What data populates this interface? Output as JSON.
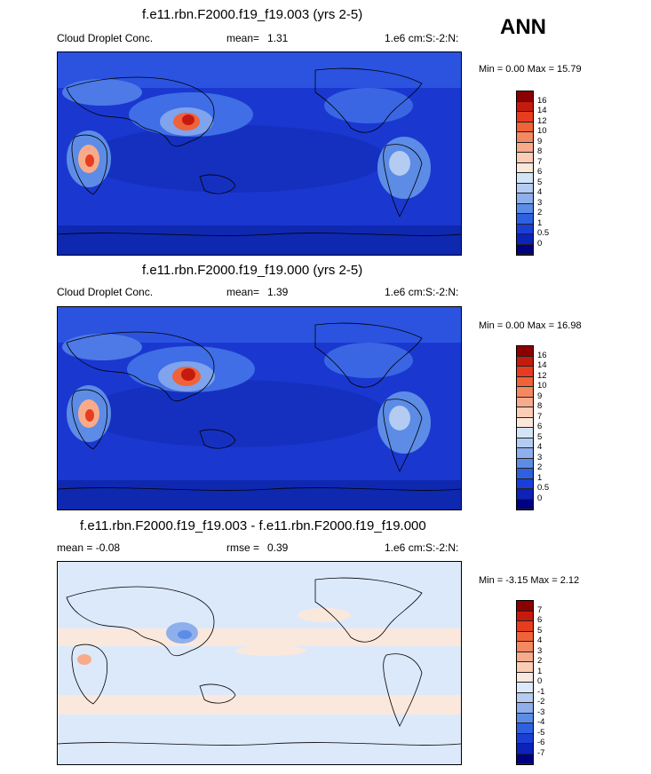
{
  "season": "ANN",
  "panels": [
    {
      "title": "f.e11.rbn.F2000.f19_f19.003 (yrs 2-5)",
      "left_label": "Cloud Droplet Conc.",
      "stat_label": "mean=",
      "stat_value": "1.31",
      "units": "1.e6 cm:S:-2:N:",
      "minmax": "Min =   0.00 Max =  15.79",
      "colorbar_labels": [
        "16",
        "14",
        "12",
        "10",
        "9",
        "8",
        "7",
        "6",
        "5",
        "4",
        "3",
        "2",
        "1",
        "0.5",
        "0"
      ],
      "colorbar_colors": [
        "#8b0000",
        "#c51b0e",
        "#e63d20",
        "#f0623a",
        "#f48860",
        "#f8ab8a",
        "#fbcdb4",
        "#fbe8dc",
        "#d4e4f8",
        "#b4ccf2",
        "#8eafec",
        "#5d8ce6",
        "#2e60e0",
        "#1a3fd6",
        "#0d22b8",
        "#000080"
      ]
    },
    {
      "title": "f.e11.rbn.F2000.f19_f19.000 (yrs 2-5)",
      "left_label": "Cloud Droplet Conc.",
      "stat_label": "mean=",
      "stat_value": "1.39",
      "units": "1.e6 cm:S:-2:N:",
      "minmax": "Min =   0.00 Max =  16.98",
      "colorbar_labels": [
        "16",
        "14",
        "12",
        "10",
        "9",
        "8",
        "7",
        "6",
        "5",
        "4",
        "3",
        "2",
        "1",
        "0.5",
        "0"
      ],
      "colorbar_colors": [
        "#8b0000",
        "#c51b0e",
        "#e63d20",
        "#f0623a",
        "#f48860",
        "#f8ab8a",
        "#fbcdb4",
        "#fbe8dc",
        "#d4e4f8",
        "#b4ccf2",
        "#8eafec",
        "#5d8ce6",
        "#2e60e0",
        "#1a3fd6",
        "#0d22b8",
        "#000080"
      ]
    },
    {
      "title": "f.e11.rbn.F2000.f19_f19.003 - f.e11.rbn.F2000.f19_f19.000",
      "left_label": "mean =  -0.08",
      "stat_label": "rmse =",
      "stat_value": "0.39",
      "units": "1.e6 cm:S:-2:N:",
      "minmax": "Min =  -3.15 Max =   2.12",
      "colorbar_labels": [
        "7",
        "6",
        "5",
        "4",
        "3",
        "2",
        "1",
        "0",
        "-1",
        "-2",
        "-3",
        "-4",
        "-5",
        "-6",
        "-7"
      ],
      "colorbar_colors": [
        "#8b0000",
        "#c51b0e",
        "#e63d20",
        "#f0623a",
        "#f48860",
        "#f8ab8a",
        "#fbcdb4",
        "#fbe8dc",
        "#dce9fb",
        "#b4ccf2",
        "#8eafec",
        "#5d8ce6",
        "#2e60e0",
        "#1a3fd6",
        "#0d22b8",
        "#000080"
      ]
    }
  ],
  "colors": {
    "ocean_fill": "#1f3fd0",
    "ocean_deep": "#1530c0",
    "diff_fill": "#d8e6fb",
    "coast": "#000000"
  }
}
